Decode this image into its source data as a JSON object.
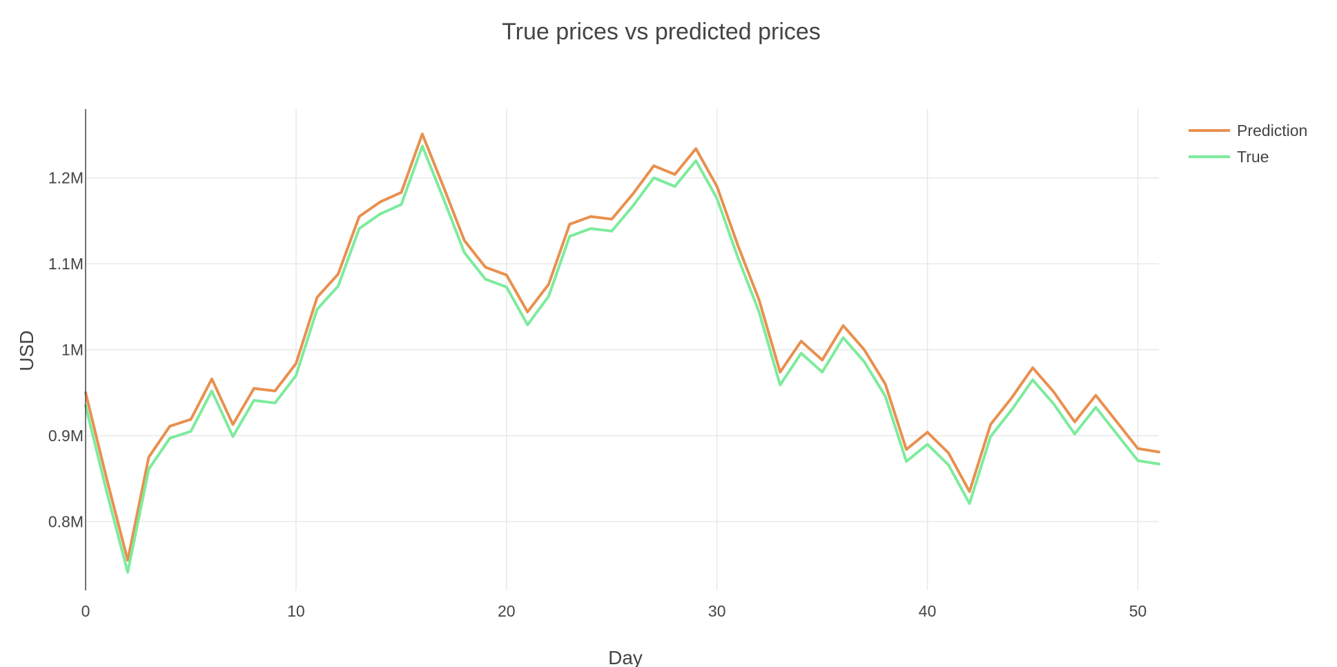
{
  "chart_data": {
    "type": "line",
    "title": "True prices vs predicted prices",
    "xlabel": "Day",
    "ylabel": "USD",
    "xlim": [
      0,
      51
    ],
    "ylim": [
      720000,
      1280000
    ],
    "x_ticks": [
      {
        "value": 0,
        "label": "0"
      },
      {
        "value": 10,
        "label": "10"
      },
      {
        "value": 20,
        "label": "20"
      },
      {
        "value": 30,
        "label": "30"
      },
      {
        "value": 40,
        "label": "40"
      },
      {
        "value": 50,
        "label": "50"
      }
    ],
    "y_ticks": [
      {
        "value": 800000,
        "label": "0.8M"
      },
      {
        "value": 900000,
        "label": "0.9M"
      },
      {
        "value": 1000000,
        "label": "1M"
      },
      {
        "value": 1100000,
        "label": "1.1M"
      },
      {
        "value": 1200000,
        "label": "1.2M"
      }
    ],
    "grid": true,
    "legend_position": "top-right",
    "x": [
      0,
      1,
      2,
      3,
      4,
      5,
      6,
      7,
      8,
      9,
      10,
      11,
      12,
      13,
      14,
      15,
      16,
      17,
      18,
      19,
      20,
      21,
      22,
      23,
      24,
      25,
      26,
      27,
      28,
      29,
      30,
      31,
      32,
      33,
      34,
      35,
      36,
      37,
      38,
      39,
      40,
      41,
      42,
      43,
      44,
      45,
      46,
      47,
      48,
      49,
      50,
      51
    ],
    "series": [
      {
        "name": "Prediction",
        "color": "#e8904f",
        "values": [
          950000,
          850000,
          755000,
          875000,
          911000,
          919000,
          966000,
          913000,
          955000,
          952000,
          984000,
          1061000,
          1088000,
          1155000,
          1172000,
          1183000,
          1251000,
          1190000,
          1127000,
          1096000,
          1087000,
          1044000,
          1076000,
          1146000,
          1155000,
          1152000,
          1181000,
          1214000,
          1204000,
          1234000,
          1190000,
          1121000,
          1058000,
          974000,
          1010000,
          988000,
          1028000,
          1000000,
          960000,
          884000,
          904000,
          880000,
          835000,
          913000,
          944000,
          979000,
          951000,
          916000,
          947000,
          916000,
          885000,
          881000
        ]
      },
      {
        "name": "True",
        "color": "#7deb9d",
        "values": [
          935000,
          835000,
          741000,
          861000,
          897000,
          905000,
          952000,
          899000,
          941000,
          938000,
          970000,
          1047000,
          1074000,
          1141000,
          1158000,
          1169000,
          1237000,
          1176000,
          1113000,
          1082000,
          1073000,
          1029000,
          1062000,
          1132000,
          1141000,
          1138000,
          1167000,
          1200000,
          1190000,
          1220000,
          1176000,
          1107000,
          1044000,
          959000,
          996000,
          974000,
          1014000,
          986000,
          946000,
          870000,
          890000,
          866000,
          821000,
          899000,
          930000,
          965000,
          937000,
          902000,
          933000,
          902000,
          871000,
          867000
        ]
      }
    ]
  }
}
